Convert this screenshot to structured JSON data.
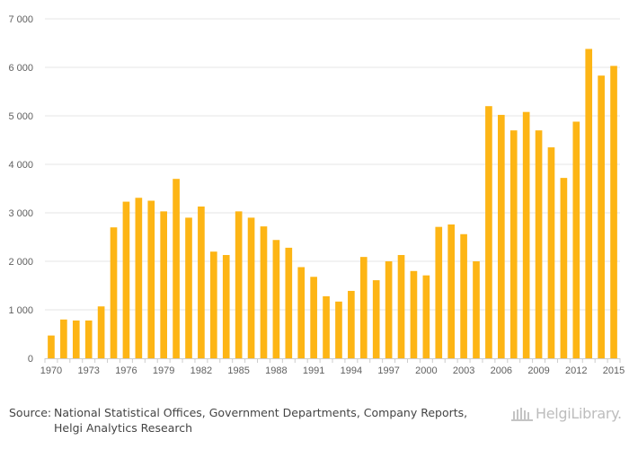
{
  "chart_data": {
    "type": "bar",
    "title": "",
    "xlabel": "",
    "ylabel": "",
    "ylim": [
      0,
      7000
    ],
    "y_ticks": [
      0,
      1000,
      2000,
      3000,
      4000,
      5000,
      6000,
      7000
    ],
    "y_tick_labels": [
      "0",
      "1 000",
      "2 000",
      "3 000",
      "4 000",
      "5 000",
      "6 000",
      "7 000"
    ],
    "x_tick_labels": [
      "1970",
      "1973",
      "1976",
      "1979",
      "1982",
      "1985",
      "1988",
      "1991",
      "1994",
      "1997",
      "2000",
      "2003",
      "2006",
      "2009",
      "2012",
      "2015"
    ],
    "categories": [
      1970,
      1971,
      1972,
      1973,
      1974,
      1975,
      1976,
      1977,
      1978,
      1979,
      1980,
      1981,
      1982,
      1983,
      1984,
      1985,
      1986,
      1987,
      1988,
      1989,
      1990,
      1991,
      1992,
      1993,
      1994,
      1995,
      1996,
      1997,
      1998,
      1999,
      2000,
      2001,
      2002,
      2003,
      2004,
      2005,
      2006,
      2007,
      2008,
      2009,
      2010,
      2011,
      2012,
      2013,
      2014,
      2015
    ],
    "values": [
      470,
      800,
      780,
      780,
      1070,
      2700,
      3230,
      3310,
      3250,
      3030,
      3700,
      2900,
      3130,
      2200,
      2130,
      3030,
      2900,
      2720,
      2440,
      2280,
      1880,
      1680,
      1280,
      1170,
      1390,
      2090,
      1610,
      2000,
      2130,
      1800,
      1710,
      2710,
      2760,
      2560,
      2000,
      5200,
      5020,
      4700,
      5080,
      4700,
      4350,
      3720,
      4880,
      6380,
      5830,
      6030
    ],
    "grid": true,
    "legend": "none",
    "colors": {
      "bar": "#FDB515",
      "grid": "#e6e6e6",
      "axis": "#cccccc",
      "tick_text": "#606060"
    }
  },
  "footer": {
    "source_label": "Source:",
    "source_text": "National Statistical Offices, Government Departments, Company Reports, Helgi Analytics Research",
    "logo_text": "HelgiLibrary."
  }
}
